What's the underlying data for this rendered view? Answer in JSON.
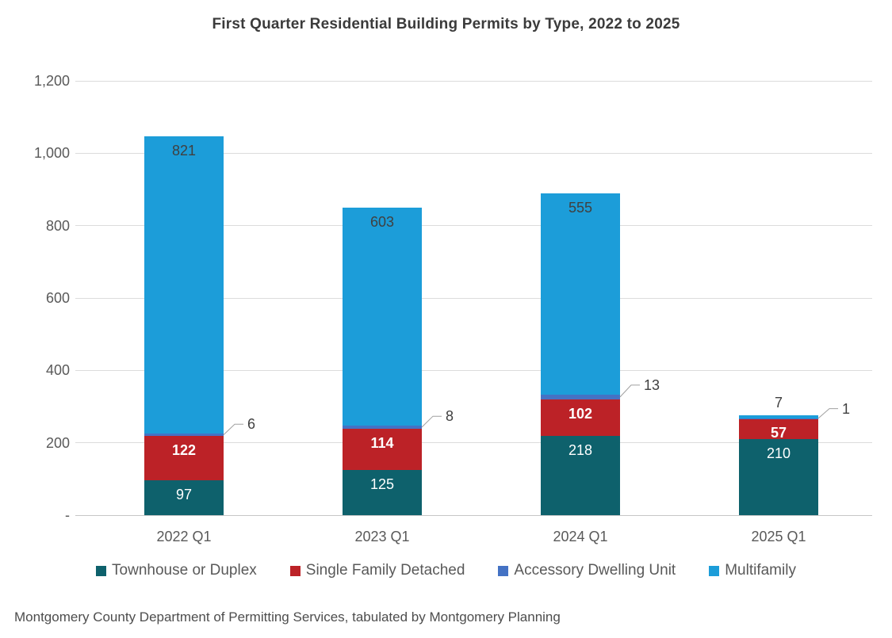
{
  "page": {
    "source": "Montgomery County Department of Permitting Services, tabulated by Montgomery Planning"
  },
  "chart_data": {
    "type": "bar",
    "stacked": true,
    "title": "First Quarter Residential Building Permits by Type, 2022 to 2025",
    "categories": [
      "2022 Q1",
      "2023 Q1",
      "2024 Q1",
      "2025 Q1"
    ],
    "series": [
      {
        "name": "Townhouse or Duplex",
        "color": "#0e616c",
        "values": [
          97,
          125,
          218,
          210
        ],
        "label_color": "#ffffff",
        "label_weight": "normal",
        "label_position": "inside-end"
      },
      {
        "name": "Single Family Detached",
        "color": "#bc2227",
        "values": [
          122,
          114,
          102,
          57
        ],
        "label_color": "#ffffff",
        "label_weight": "bold",
        "label_position": "inside-end"
      },
      {
        "name": "Accessory Dwelling Unit",
        "color": "#4472c4",
        "values": [
          6,
          8,
          13,
          1
        ],
        "label_color": "#404040",
        "label_weight": "normal",
        "label_position": "callout"
      },
      {
        "name": "Multifamily",
        "color": "#1c9dd9",
        "values": [
          821,
          603,
          555,
          7
        ],
        "label_color": "#404040",
        "label_weight": "normal",
        "label_position": "inside-end"
      }
    ],
    "totals": [
      1046,
      850,
      888,
      275
    ],
    "y_axis": {
      "range": [
        0,
        1200
      ],
      "ticks": [
        {
          "label": "-",
          "value": 0
        },
        {
          "label": "200",
          "value": 200
        },
        {
          "label": "400",
          "value": 400
        },
        {
          "label": "600",
          "value": 600
        },
        {
          "label": "800",
          "value": 800
        },
        {
          "label": "1,000",
          "value": 1000
        },
        {
          "label": "1,200",
          "value": 1200
        }
      ]
    },
    "grid": true,
    "legend_position": "bottom",
    "colors": {
      "grid_line": "#dcdcdc",
      "axis_line": "#c6c6c6",
      "leader_line": "#a0a0a0",
      "axis_text": "#595959",
      "dark_label": "#404040"
    }
  }
}
